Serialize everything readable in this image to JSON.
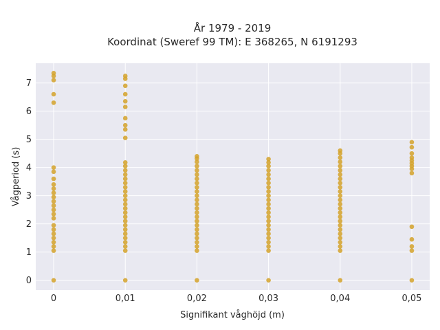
{
  "chart_data": {
    "type": "scatter",
    "title": "År 1979 - 2019",
    "subtitle": "Koordinat (Sweref 99 TM): E 368265, N 6191293",
    "xlabel": "Signifikant våghöjd (m)",
    "ylabel": "Vågperiod (s)",
    "xlim": [
      -0.0025,
      0.0525
    ],
    "ylim": [
      -0.35,
      7.7
    ],
    "x_ticks": [
      0,
      0.01,
      0.02,
      0.03,
      0.04,
      0.05
    ],
    "x_tick_labels": [
      "0",
      "0,01",
      "0,02",
      "0,03",
      "0,04",
      "0,05"
    ],
    "y_ticks": [
      0,
      1,
      2,
      3,
      4,
      5,
      6,
      7
    ],
    "y_tick_labels": [
      "0",
      "1",
      "2",
      "3",
      "4",
      "5",
      "6",
      "7"
    ],
    "grid": true,
    "marker_color": "#d4a22a",
    "plot_background": "#e9e9f1",
    "series": [
      {
        "points": [
          {
            "x": 0,
            "y": 0
          },
          {
            "x": 0,
            "y": 1.05
          },
          {
            "x": 0,
            "y": 1.2
          },
          {
            "x": 0,
            "y": 1.35
          },
          {
            "x": 0,
            "y": 1.5
          },
          {
            "x": 0,
            "y": 1.65
          },
          {
            "x": 0,
            "y": 1.8
          },
          {
            "x": 0,
            "y": 1.95
          },
          {
            "x": 0,
            "y": 2.2
          },
          {
            "x": 0,
            "y": 2.35
          },
          {
            "x": 0,
            "y": 2.5
          },
          {
            "x": 0,
            "y": 2.65
          },
          {
            "x": 0,
            "y": 2.8
          },
          {
            "x": 0,
            "y": 2.95
          },
          {
            "x": 0,
            "y": 3.1
          },
          {
            "x": 0,
            "y": 3.25
          },
          {
            "x": 0,
            "y": 3.4
          },
          {
            "x": 0,
            "y": 3.6
          },
          {
            "x": 0,
            "y": 3.85
          },
          {
            "x": 0,
            "y": 4.0
          },
          {
            "x": 0,
            "y": 6.3
          },
          {
            "x": 0,
            "y": 6.6
          },
          {
            "x": 0,
            "y": 7.1
          },
          {
            "x": 0,
            "y": 7.25
          },
          {
            "x": 0,
            "y": 7.35
          },
          {
            "x": 0.01,
            "y": 0
          },
          {
            "x": 0.01,
            "y": 1.05
          },
          {
            "x": 0.01,
            "y": 1.2
          },
          {
            "x": 0.01,
            "y": 1.35
          },
          {
            "x": 0.01,
            "y": 1.5
          },
          {
            "x": 0.01,
            "y": 1.65
          },
          {
            "x": 0.01,
            "y": 1.8
          },
          {
            "x": 0.01,
            "y": 1.95
          },
          {
            "x": 0.01,
            "y": 2.1
          },
          {
            "x": 0.01,
            "y": 2.25
          },
          {
            "x": 0.01,
            "y": 2.4
          },
          {
            "x": 0.01,
            "y": 2.55
          },
          {
            "x": 0.01,
            "y": 2.7
          },
          {
            "x": 0.01,
            "y": 2.85
          },
          {
            "x": 0.01,
            "y": 3.0
          },
          {
            "x": 0.01,
            "y": 3.15
          },
          {
            "x": 0.01,
            "y": 3.3
          },
          {
            "x": 0.01,
            "y": 3.45
          },
          {
            "x": 0.01,
            "y": 3.6
          },
          {
            "x": 0.01,
            "y": 3.75
          },
          {
            "x": 0.01,
            "y": 3.9
          },
          {
            "x": 0.01,
            "y": 4.05
          },
          {
            "x": 0.01,
            "y": 4.18
          },
          {
            "x": 0.01,
            "y": 5.05
          },
          {
            "x": 0.01,
            "y": 5.35
          },
          {
            "x": 0.01,
            "y": 5.5
          },
          {
            "x": 0.01,
            "y": 5.75
          },
          {
            "x": 0.01,
            "y": 6.15
          },
          {
            "x": 0.01,
            "y": 6.35
          },
          {
            "x": 0.01,
            "y": 6.6
          },
          {
            "x": 0.01,
            "y": 6.9
          },
          {
            "x": 0.01,
            "y": 7.15
          },
          {
            "x": 0.01,
            "y": 7.25
          },
          {
            "x": 0.02,
            "y": 0
          },
          {
            "x": 0.02,
            "y": 1.05
          },
          {
            "x": 0.02,
            "y": 1.2
          },
          {
            "x": 0.02,
            "y": 1.35
          },
          {
            "x": 0.02,
            "y": 1.5
          },
          {
            "x": 0.02,
            "y": 1.65
          },
          {
            "x": 0.02,
            "y": 1.8
          },
          {
            "x": 0.02,
            "y": 1.95
          },
          {
            "x": 0.02,
            "y": 2.1
          },
          {
            "x": 0.02,
            "y": 2.25
          },
          {
            "x": 0.02,
            "y": 2.4
          },
          {
            "x": 0.02,
            "y": 2.55
          },
          {
            "x": 0.02,
            "y": 2.7
          },
          {
            "x": 0.02,
            "y": 2.85
          },
          {
            "x": 0.02,
            "y": 3.0
          },
          {
            "x": 0.02,
            "y": 3.15
          },
          {
            "x": 0.02,
            "y": 3.3
          },
          {
            "x": 0.02,
            "y": 3.45
          },
          {
            "x": 0.02,
            "y": 3.6
          },
          {
            "x": 0.02,
            "y": 3.75
          },
          {
            "x": 0.02,
            "y": 3.9
          },
          {
            "x": 0.02,
            "y": 4.05
          },
          {
            "x": 0.02,
            "y": 4.2
          },
          {
            "x": 0.02,
            "y": 4.32
          },
          {
            "x": 0.02,
            "y": 4.4
          },
          {
            "x": 0.03,
            "y": 0
          },
          {
            "x": 0.03,
            "y": 1.05
          },
          {
            "x": 0.03,
            "y": 1.2
          },
          {
            "x": 0.03,
            "y": 1.35
          },
          {
            "x": 0.03,
            "y": 1.5
          },
          {
            "x": 0.03,
            "y": 1.65
          },
          {
            "x": 0.03,
            "y": 1.8
          },
          {
            "x": 0.03,
            "y": 1.95
          },
          {
            "x": 0.03,
            "y": 2.1
          },
          {
            "x": 0.03,
            "y": 2.25
          },
          {
            "x": 0.03,
            "y": 2.4
          },
          {
            "x": 0.03,
            "y": 2.55
          },
          {
            "x": 0.03,
            "y": 2.7
          },
          {
            "x": 0.03,
            "y": 2.85
          },
          {
            "x": 0.03,
            "y": 3.0
          },
          {
            "x": 0.03,
            "y": 3.15
          },
          {
            "x": 0.03,
            "y": 3.3
          },
          {
            "x": 0.03,
            "y": 3.45
          },
          {
            "x": 0.03,
            "y": 3.6
          },
          {
            "x": 0.03,
            "y": 3.75
          },
          {
            "x": 0.03,
            "y": 3.9
          },
          {
            "x": 0.03,
            "y": 4.05
          },
          {
            "x": 0.03,
            "y": 4.18
          },
          {
            "x": 0.03,
            "y": 4.3
          },
          {
            "x": 0.04,
            "y": 0
          },
          {
            "x": 0.04,
            "y": 1.05
          },
          {
            "x": 0.04,
            "y": 1.2
          },
          {
            "x": 0.04,
            "y": 1.35
          },
          {
            "x": 0.04,
            "y": 1.5
          },
          {
            "x": 0.04,
            "y": 1.65
          },
          {
            "x": 0.04,
            "y": 1.8
          },
          {
            "x": 0.04,
            "y": 1.95
          },
          {
            "x": 0.04,
            "y": 2.1
          },
          {
            "x": 0.04,
            "y": 2.25
          },
          {
            "x": 0.04,
            "y": 2.4
          },
          {
            "x": 0.04,
            "y": 2.55
          },
          {
            "x": 0.04,
            "y": 2.7
          },
          {
            "x": 0.04,
            "y": 2.85
          },
          {
            "x": 0.04,
            "y": 3.0
          },
          {
            "x": 0.04,
            "y": 3.15
          },
          {
            "x": 0.04,
            "y": 3.3
          },
          {
            "x": 0.04,
            "y": 3.45
          },
          {
            "x": 0.04,
            "y": 3.6
          },
          {
            "x": 0.04,
            "y": 3.75
          },
          {
            "x": 0.04,
            "y": 3.9
          },
          {
            "x": 0.04,
            "y": 4.05
          },
          {
            "x": 0.04,
            "y": 4.2
          },
          {
            "x": 0.04,
            "y": 4.35
          },
          {
            "x": 0.04,
            "y": 4.5
          },
          {
            "x": 0.04,
            "y": 4.6
          },
          {
            "x": 0.05,
            "y": 0
          },
          {
            "x": 0.05,
            "y": 1.05
          },
          {
            "x": 0.05,
            "y": 1.2
          },
          {
            "x": 0.05,
            "y": 1.45
          },
          {
            "x": 0.05,
            "y": 1.9
          },
          {
            "x": 0.05,
            "y": 3.8
          },
          {
            "x": 0.05,
            "y": 3.95
          },
          {
            "x": 0.05,
            "y": 4.05
          },
          {
            "x": 0.05,
            "y": 4.15
          },
          {
            "x": 0.05,
            "y": 4.25
          },
          {
            "x": 0.05,
            "y": 4.35
          },
          {
            "x": 0.05,
            "y": 4.5
          },
          {
            "x": 0.05,
            "y": 4.72
          },
          {
            "x": 0.05,
            "y": 4.9
          }
        ]
      }
    ]
  }
}
